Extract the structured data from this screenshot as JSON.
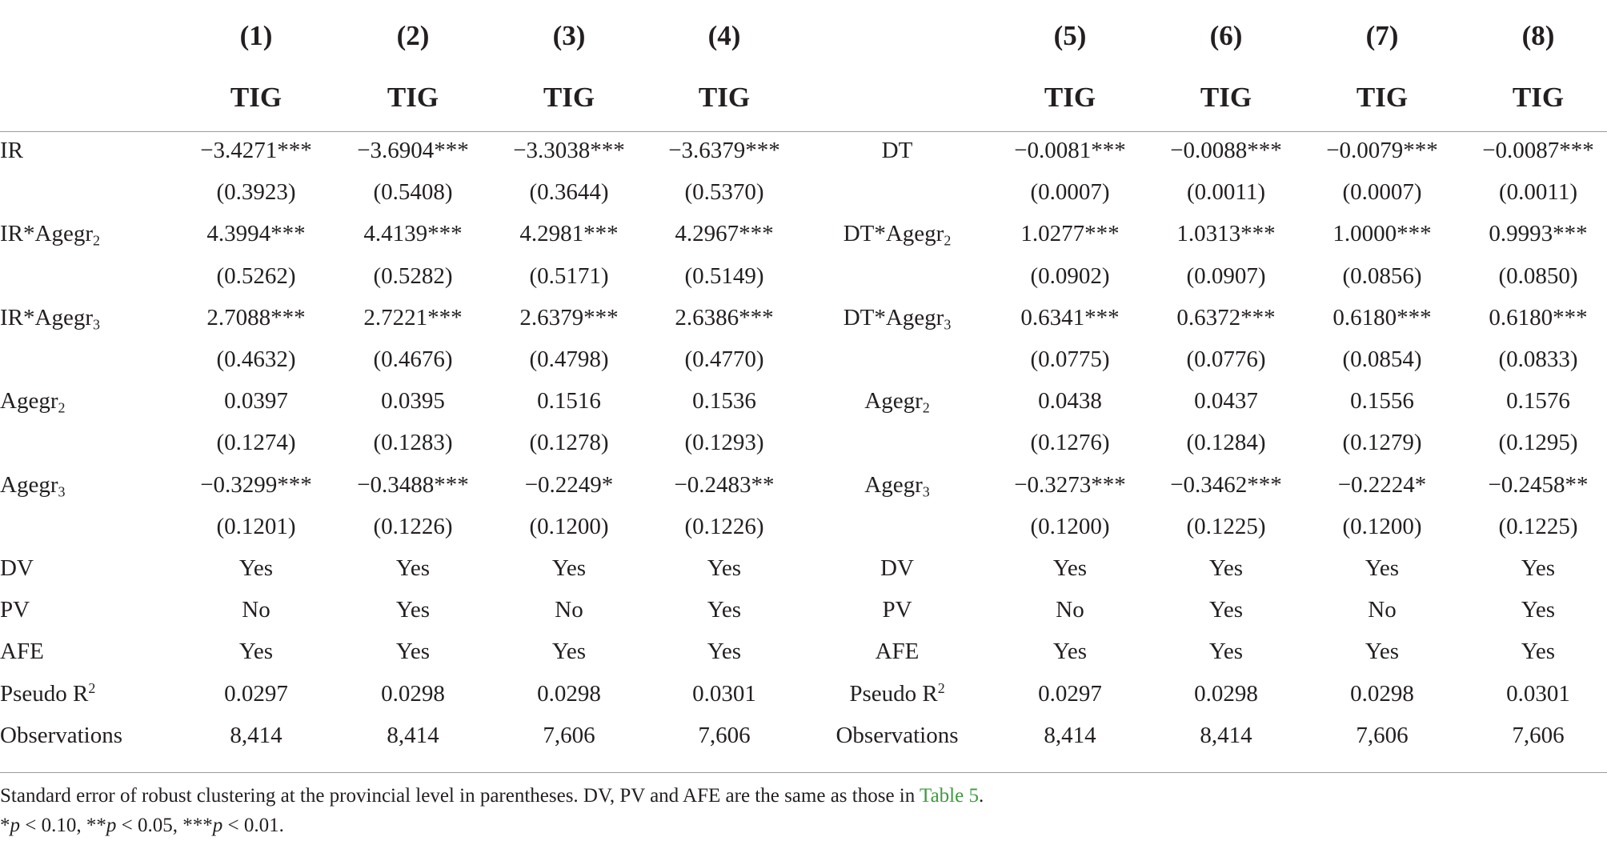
{
  "table": {
    "header": {
      "models": [
        "(1)",
        "(2)",
        "(3)",
        "(4)",
        "(5)",
        "(6)",
        "(7)",
        "(8)"
      ],
      "dep_vars": [
        "TIG",
        "TIG",
        "TIG",
        "TIG",
        "TIG",
        "TIG",
        "TIG",
        "TIG"
      ]
    },
    "rows": [
      {
        "left_label": {
          "text": "IR"
        },
        "left_values": [
          "−3.4271***",
          "−3.6904***",
          "−3.3038***",
          "−3.6379***"
        ],
        "mid_label": {
          "text": "DT"
        },
        "right_values": [
          "−0.0081***",
          "−0.0088***",
          "−0.0079***",
          "−0.0087***"
        ]
      },
      {
        "left_values": [
          "(0.3923)",
          "(0.5408)",
          "(0.3644)",
          "(0.5370)"
        ],
        "right_values": [
          "(0.0007)",
          "(0.0011)",
          "(0.0007)",
          "(0.0011)"
        ]
      },
      {
        "left_label": {
          "text": "IR*Agegr",
          "sub": "2"
        },
        "left_values": [
          "4.3994***",
          "4.4139***",
          "4.2981***",
          "4.2967***"
        ],
        "mid_label": {
          "text": "DT*Agegr",
          "sub": "2"
        },
        "right_values": [
          "1.0277***",
          "1.0313***",
          "1.0000***",
          "0.9993***"
        ]
      },
      {
        "left_values": [
          "(0.5262)",
          "(0.5282)",
          "(0.5171)",
          "(0.5149)"
        ],
        "right_values": [
          "(0.0902)",
          "(0.0907)",
          "(0.0856)",
          "(0.0850)"
        ]
      },
      {
        "left_label": {
          "text": "IR*Agegr",
          "sub": "3"
        },
        "left_values": [
          "2.7088***",
          "2.7221***",
          "2.6379***",
          "2.6386***"
        ],
        "mid_label": {
          "text": "DT*Agegr",
          "sub": "3"
        },
        "right_values": [
          "0.6341***",
          "0.6372***",
          "0.6180***",
          "0.6180***"
        ]
      },
      {
        "left_values": [
          "(0.4632)",
          "(0.4676)",
          "(0.4798)",
          "(0.4770)"
        ],
        "right_values": [
          "(0.0775)",
          "(0.0776)",
          "(0.0854)",
          "(0.0833)"
        ]
      },
      {
        "left_label": {
          "text": "Agegr",
          "sub": "2"
        },
        "left_values": [
          "0.0397",
          "0.0395",
          "0.1516",
          "0.1536"
        ],
        "mid_label": {
          "text": "Agegr",
          "sub": "2"
        },
        "right_values": [
          "0.0438",
          "0.0437",
          "0.1556",
          "0.1576"
        ]
      },
      {
        "left_values": [
          "(0.1274)",
          "(0.1283)",
          "(0.1278)",
          "(0.1293)"
        ],
        "right_values": [
          "(0.1276)",
          "(0.1284)",
          "(0.1279)",
          "(0.1295)"
        ]
      },
      {
        "left_label": {
          "text": "Agegr",
          "sub": "3"
        },
        "left_values": [
          "−0.3299***",
          "−0.3488***",
          "−0.2249*",
          "−0.2483**"
        ],
        "mid_label": {
          "text": "Agegr",
          "sub": "3"
        },
        "right_values": [
          "−0.3273***",
          "−0.3462***",
          "−0.2224*",
          "−0.2458**"
        ]
      },
      {
        "left_values": [
          "(0.1201)",
          "(0.1226)",
          "(0.1200)",
          "(0.1226)"
        ],
        "right_values": [
          "(0.1200)",
          "(0.1225)",
          "(0.1200)",
          "(0.1225)"
        ]
      },
      {
        "left_label": {
          "text": "DV"
        },
        "left_values": [
          "Yes",
          "Yes",
          "Yes",
          "Yes"
        ],
        "mid_label": {
          "text": "DV"
        },
        "right_values": [
          "Yes",
          "Yes",
          "Yes",
          "Yes"
        ]
      },
      {
        "left_label": {
          "text": "PV"
        },
        "left_values": [
          "No",
          "Yes",
          "No",
          "Yes"
        ],
        "mid_label": {
          "text": "PV"
        },
        "right_values": [
          "No",
          "Yes",
          "No",
          "Yes"
        ]
      },
      {
        "left_label": {
          "text": "AFE"
        },
        "left_values": [
          "Yes",
          "Yes",
          "Yes",
          "Yes"
        ],
        "mid_label": {
          "text": "AFE"
        },
        "right_values": [
          "Yes",
          "Yes",
          "Yes",
          "Yes"
        ]
      },
      {
        "left_label": {
          "text": "Pseudo R",
          "sup": "2"
        },
        "left_values": [
          "0.0297",
          "0.0298",
          "0.0298",
          "0.0301"
        ],
        "mid_label": {
          "text": "Pseudo R",
          "sup": "2"
        },
        "right_values": [
          "0.0297",
          "0.0298",
          "0.0298",
          "0.0301"
        ]
      },
      {
        "left_label": {
          "text": "Observations"
        },
        "left_values": [
          "8,414",
          "8,414",
          "7,606",
          "7,606"
        ],
        "mid_label": {
          "text": "Observations"
        },
        "right_values": [
          "8,414",
          "8,414",
          "7,606",
          "7,606"
        ]
      }
    ]
  },
  "notes": {
    "text": "Standard error of robust clustering at the provincial level in parentheses. DV, PV and AFE are the same as those in ",
    "link": "Table 5",
    "end": ".",
    "significance": [
      {
        "stars": "*",
        "symbol": "p",
        "text": " < 0.10, "
      },
      {
        "stars": "**",
        "symbol": "p",
        "text": " < 0.05, "
      },
      {
        "stars": "***",
        "symbol": "p",
        "text": " < 0.01."
      }
    ]
  },
  "colors": {
    "link": "#3d9b3d"
  }
}
